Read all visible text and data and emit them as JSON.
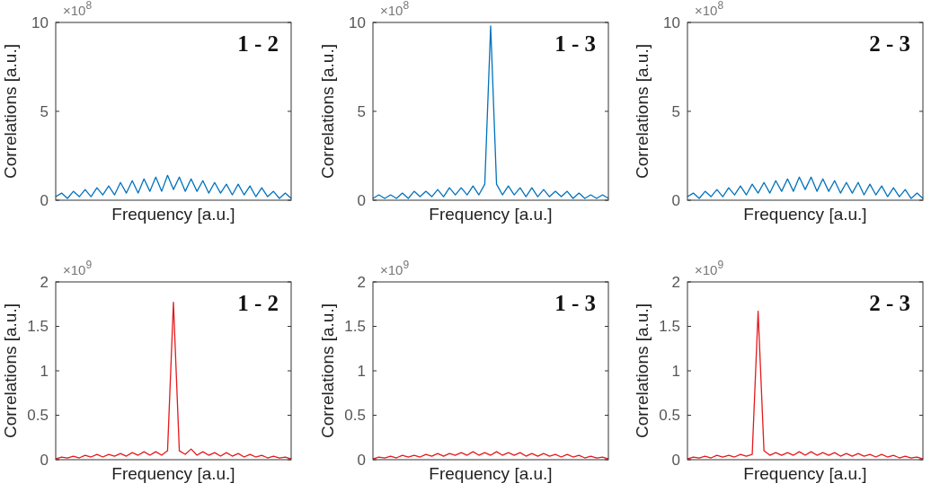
{
  "chart_data": [
    {
      "type": "line",
      "xlabel": "Frequency [a.u.]",
      "ylabel": "Correlations [a.u.]",
      "annotations": [
        "×10$^{8}$",
        "1 - 2"
      ],
      "categories": [
        null,
        null,
        null,
        null,
        null,
        null,
        null,
        null,
        null,
        null,
        null,
        null,
        null,
        null,
        null,
        null,
        null,
        null,
        null,
        null,
        null,
        null,
        null,
        null,
        null,
        null,
        null,
        null,
        null,
        null,
        null,
        null,
        null,
        null,
        null,
        null,
        null,
        null,
        null,
        null,
        null
      ],
      "series": [
        {
          "color": "#0072bd",
          "values": [
            0.2,
            0.4,
            0.1,
            0.5,
            0.2,
            0.6,
            0.2,
            0.7,
            0.3,
            0.8,
            0.3,
            1.0,
            0.4,
            1.1,
            0.4,
            1.2,
            0.5,
            1.3,
            0.5,
            1.4,
            0.6,
            1.3,
            0.5,
            1.2,
            0.5,
            1.1,
            0.4,
            1.0,
            0.4,
            0.9,
            0.3,
            0.9,
            0.3,
            0.8,
            0.2,
            0.7,
            0.2,
            0.5,
            0.1,
            0.4,
            0.1
          ]
        }
      ],
      "ylim": [
        0,
        10
      ],
      "yticks": [
        0,
        5,
        10
      ],
      "tick_labels": "y"
    },
    {
      "type": "line",
      "xlabel": "Frequency [a.u.]",
      "ylabel": "Correlations [a.u.]",
      "annotations": [
        "×10$^{8}$",
        "1 - 3"
      ],
      "categories": [
        null,
        null,
        null,
        null,
        null,
        null,
        null,
        null,
        null,
        null,
        null,
        null,
        null,
        null,
        null,
        null,
        null,
        null,
        null,
        null,
        null,
        null,
        null,
        null,
        null,
        null,
        null,
        null,
        null,
        null,
        null,
        null,
        null,
        null,
        null,
        null,
        null,
        null,
        null,
        null,
        null
      ],
      "series": [
        {
          "color": "#0072bd",
          "values": [
            0.1,
            0.3,
            0.1,
            0.3,
            0.1,
            0.4,
            0.1,
            0.5,
            0.2,
            0.5,
            0.2,
            0.6,
            0.2,
            0.7,
            0.3,
            0.7,
            0.3,
            0.8,
            0.3,
            0.9,
            9.8,
            0.9,
            0.3,
            0.8,
            0.3,
            0.7,
            0.2,
            0.7,
            0.2,
            0.6,
            0.2,
            0.5,
            0.2,
            0.5,
            0.1,
            0.4,
            0.1,
            0.3,
            0.1,
            0.3,
            0.1
          ]
        }
      ],
      "ylim": [
        0,
        10
      ],
      "yticks": [
        0,
        5,
        10
      ],
      "tick_labels": "y"
    },
    {
      "type": "line",
      "xlabel": "Frequency [a.u.]",
      "ylabel": "Correlations [a.u.]",
      "annotations": [
        "×10$^{8}$",
        "2 - 3"
      ],
      "categories": [
        null,
        null,
        null,
        null,
        null,
        null,
        null,
        null,
        null,
        null,
        null,
        null,
        null,
        null,
        null,
        null,
        null,
        null,
        null,
        null,
        null,
        null,
        null,
        null,
        null,
        null,
        null,
        null,
        null,
        null,
        null,
        null,
        null,
        null,
        null,
        null,
        null,
        null,
        null,
        null,
        null
      ],
      "series": [
        {
          "color": "#0072bd",
          "values": [
            0.2,
            0.4,
            0.1,
            0.5,
            0.2,
            0.6,
            0.2,
            0.7,
            0.3,
            0.8,
            0.3,
            0.9,
            0.4,
            1.0,
            0.4,
            1.1,
            0.5,
            1.2,
            0.5,
            1.3,
            0.6,
            1.3,
            0.5,
            1.2,
            0.5,
            1.1,
            0.4,
            1.0,
            0.4,
            1.0,
            0.3,
            0.9,
            0.3,
            0.8,
            0.2,
            0.7,
            0.2,
            0.6,
            0.1,
            0.4,
            0.1
          ]
        }
      ],
      "ylim": [
        0,
        10
      ],
      "yticks": [
        0,
        5,
        10
      ],
      "tick_labels": "y"
    },
    {
      "type": "line",
      "xlabel": "Frequency [a.u.]",
      "ylabel": "Correlations [a.u.]",
      "annotations": [
        "×10$^{9}$",
        "1 - 2"
      ],
      "categories": [
        null,
        null,
        null,
        null,
        null,
        null,
        null,
        null,
        null,
        null,
        null,
        null,
        null,
        null,
        null,
        null,
        null,
        null,
        null,
        null,
        null,
        null,
        null,
        null,
        null,
        null,
        null,
        null,
        null,
        null,
        null,
        null,
        null,
        null,
        null,
        null,
        null,
        null,
        null,
        null,
        null
      ],
      "series": [
        {
          "color": "#e41a1c",
          "values": [
            0.01,
            0.03,
            0.02,
            0.04,
            0.02,
            0.05,
            0.03,
            0.06,
            0.03,
            0.06,
            0.04,
            0.07,
            0.04,
            0.08,
            0.05,
            0.09,
            0.05,
            0.09,
            0.05,
            0.1,
            1.77,
            0.1,
            0.06,
            0.12,
            0.05,
            0.09,
            0.05,
            0.08,
            0.04,
            0.08,
            0.04,
            0.07,
            0.03,
            0.06,
            0.03,
            0.05,
            0.02,
            0.04,
            0.02,
            0.03,
            0.01
          ]
        }
      ],
      "ylim": [
        0,
        2
      ],
      "yticks": [
        0,
        0.5,
        1,
        1.5,
        2
      ],
      "tick_labels": "y"
    },
    {
      "type": "line",
      "xlabel": "Frequency [a.u.]",
      "ylabel": "Correlations [a.u.]",
      "annotations": [
        "×10$^{9}$",
        "1 - 3"
      ],
      "categories": [
        null,
        null,
        null,
        null,
        null,
        null,
        null,
        null,
        null,
        null,
        null,
        null,
        null,
        null,
        null,
        null,
        null,
        null,
        null,
        null,
        null,
        null,
        null,
        null,
        null,
        null,
        null,
        null,
        null,
        null,
        null,
        null,
        null,
        null,
        null,
        null,
        null,
        null,
        null,
        null,
        null
      ],
      "series": [
        {
          "color": "#e41a1c",
          "values": [
            0.01,
            0.03,
            0.02,
            0.04,
            0.02,
            0.05,
            0.03,
            0.05,
            0.03,
            0.06,
            0.04,
            0.07,
            0.04,
            0.07,
            0.05,
            0.08,
            0.05,
            0.09,
            0.05,
            0.08,
            0.05,
            0.09,
            0.05,
            0.08,
            0.05,
            0.08,
            0.04,
            0.07,
            0.04,
            0.07,
            0.04,
            0.06,
            0.03,
            0.06,
            0.03,
            0.05,
            0.02,
            0.04,
            0.02,
            0.03,
            0.01
          ]
        }
      ],
      "ylim": [
        0,
        2
      ],
      "yticks": [
        0,
        0.5,
        1,
        1.5,
        2
      ],
      "tick_labels": "y"
    },
    {
      "type": "line",
      "xlabel": "Frequency [a.u.]",
      "ylabel": "Correlations [a.u.]",
      "annotations": [
        "×10$^{9}$",
        "2 - 3"
      ],
      "categories": [
        null,
        null,
        null,
        null,
        null,
        null,
        null,
        null,
        null,
        null,
        null,
        null,
        null,
        null,
        null,
        null,
        null,
        null,
        null,
        null,
        null,
        null,
        null,
        null,
        null,
        null,
        null,
        null,
        null,
        null,
        null,
        null,
        null,
        null,
        null,
        null,
        null,
        null,
        null,
        null,
        null
      ],
      "series": [
        {
          "color": "#e41a1c",
          "values": [
            0.01,
            0.03,
            0.02,
            0.04,
            0.02,
            0.05,
            0.03,
            0.05,
            0.03,
            0.06,
            0.04,
            0.06,
            1.67,
            0.1,
            0.05,
            0.08,
            0.05,
            0.08,
            0.05,
            0.09,
            0.05,
            0.09,
            0.05,
            0.08,
            0.05,
            0.08,
            0.04,
            0.07,
            0.04,
            0.07,
            0.04,
            0.06,
            0.03,
            0.06,
            0.03,
            0.05,
            0.02,
            0.04,
            0.02,
            0.03,
            0.01
          ]
        }
      ],
      "ylim": [
        0,
        2
      ],
      "yticks": [
        0,
        0.5,
        1,
        1.5,
        2
      ],
      "tick_labels": "y"
    }
  ]
}
